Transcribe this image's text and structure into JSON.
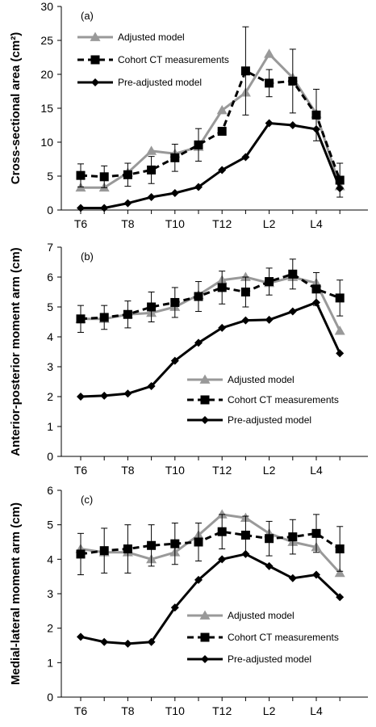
{
  "chart_data": [
    {
      "type": "line",
      "panel_label": "(a)",
      "ylabel": "Cross-sectional area  (cm²)",
      "ylim": [
        0,
        30
      ],
      "yticks": [
        0,
        5,
        10,
        15,
        20,
        25,
        30
      ],
      "categories": [
        "T6",
        "T7",
        "T8",
        "T9",
        "T10",
        "T11",
        "T12",
        "L1",
        "L2",
        "L3",
        "L4",
        "L5"
      ],
      "xtick_labels": [
        "T6",
        "",
        "T8",
        "",
        "T10",
        "",
        "T12",
        "",
        "L2",
        "",
        "L4",
        ""
      ],
      "legend": "top-left",
      "series": [
        {
          "name": "Adjusted model",
          "color": "#999999",
          "marker": "triangle",
          "dash": "solid",
          "values": [
            3.3,
            3.3,
            5.5,
            8.7,
            8.3,
            9.3,
            14.7,
            17.3,
            23.0,
            19.5,
            14.2,
            3.5
          ]
        },
        {
          "name": "Cohort CT measurements",
          "color": "#000000",
          "marker": "square",
          "dash": "dashed",
          "values": [
            5.1,
            4.9,
            5.2,
            5.9,
            7.7,
            9.6,
            11.6,
            20.5,
            18.7,
            19.0,
            14.0,
            4.4
          ],
          "error": [
            1.7,
            1.6,
            1.7,
            2.0,
            2.0,
            2.4,
            0.0,
            6.5,
            2.0,
            4.7,
            3.8,
            2.5
          ]
        },
        {
          "name": "Pre-adjusted model",
          "color": "#000000",
          "marker": "diamond",
          "dash": "solid",
          "values": [
            0.3,
            0.3,
            1.0,
            1.9,
            2.5,
            3.4,
            5.9,
            7.8,
            12.8,
            12.5,
            11.9,
            3.2
          ]
        }
      ]
    },
    {
      "type": "line",
      "panel_label": "(b)",
      "ylabel": "Anterior-posterior moment arm (cm)",
      "ylim": [
        0,
        7
      ],
      "yticks": [
        0,
        1,
        2,
        3,
        4,
        5,
        6,
        7
      ],
      "categories": [
        "T6",
        "T7",
        "T8",
        "T9",
        "T10",
        "T11",
        "T12",
        "L1",
        "L2",
        "L3",
        "L4",
        "L5"
      ],
      "xtick_labels": [
        "T6",
        "",
        "T8",
        "",
        "T10",
        "",
        "T12",
        "",
        "L2",
        "",
        "L4",
        ""
      ],
      "legend": "bottom-right",
      "series": [
        {
          "name": "Adjusted model",
          "color": "#999999",
          "marker": "triangle",
          "dash": "solid",
          "values": [
            4.6,
            4.6,
            4.75,
            4.8,
            5.0,
            5.4,
            5.9,
            6.0,
            5.8,
            6.0,
            5.8,
            4.2
          ]
        },
        {
          "name": "Cohort CT measurements",
          "color": "#000000",
          "marker": "square",
          "dash": "dashed",
          "values": [
            4.6,
            4.65,
            4.75,
            5.0,
            5.15,
            5.35,
            5.65,
            5.5,
            5.85,
            6.1,
            5.6,
            5.3
          ],
          "error": [
            0.45,
            0.4,
            0.45,
            0.5,
            0.5,
            0.5,
            0.55,
            0.5,
            0.45,
            0.5,
            0.55,
            0.6
          ]
        },
        {
          "name": "Pre-adjusted model",
          "color": "#000000",
          "marker": "diamond",
          "dash": "solid",
          "values": [
            2.0,
            2.03,
            2.1,
            2.35,
            3.2,
            3.8,
            4.3,
            4.55,
            4.57,
            4.85,
            5.15,
            3.45
          ]
        }
      ]
    },
    {
      "type": "line",
      "panel_label": "(c)",
      "ylabel": "Medial-lateral moment arm (cm)",
      "ylim": [
        0,
        6
      ],
      "yticks": [
        0,
        1,
        2,
        3,
        4,
        5,
        6
      ],
      "categories": [
        "T6",
        "T7",
        "T8",
        "T9",
        "T10",
        "T11",
        "T12",
        "L1",
        "L2",
        "L3",
        "L4",
        "L5"
      ],
      "xtick_labels": [
        "T6",
        "",
        "T8",
        "",
        "T10",
        "",
        "T12",
        "",
        "L2",
        "",
        "L4",
        ""
      ],
      "legend": "bottom-right",
      "series": [
        {
          "name": "Adjusted model",
          "color": "#999999",
          "marker": "triangle",
          "dash": "solid",
          "values": [
            4.3,
            4.2,
            4.2,
            4.0,
            4.2,
            4.7,
            5.3,
            5.2,
            4.75,
            4.5,
            4.35,
            3.6
          ]
        },
        {
          "name": "Cohort CT measurements",
          "color": "#000000",
          "marker": "square",
          "dash": "dashed",
          "values": [
            4.15,
            4.25,
            4.3,
            4.4,
            4.45,
            4.5,
            4.8,
            4.7,
            4.6,
            4.65,
            4.75,
            4.3
          ],
          "error": [
            0.6,
            0.65,
            0.7,
            0.6,
            0.6,
            0.55,
            0.5,
            0.55,
            0.5,
            0.5,
            0.55,
            0.65
          ]
        },
        {
          "name": "Pre-adjusted model",
          "color": "#000000",
          "marker": "diamond",
          "dash": "solid",
          "values": [
            1.75,
            1.6,
            1.55,
            1.6,
            2.6,
            3.4,
            4.0,
            4.15,
            3.8,
            3.45,
            3.55,
            2.9
          ]
        }
      ]
    }
  ]
}
